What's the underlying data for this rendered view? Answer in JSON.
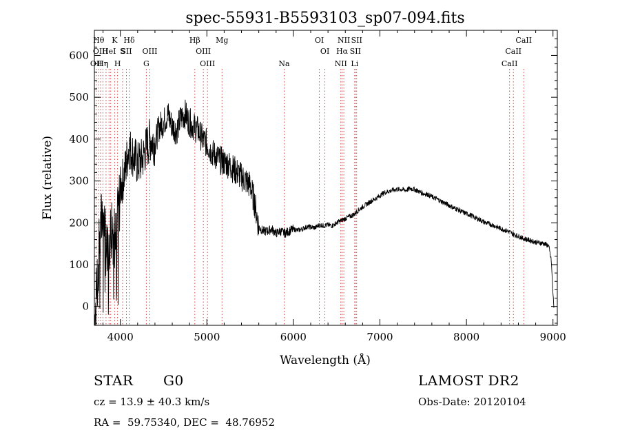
{
  "chart_data": {
    "type": "line",
    "title": "spec-55931-B5593103_sp07-094.fits",
    "xlabel": "Wavelength (Å)",
    "ylabel": "Flux (relative)",
    "xlim": [
      3700,
      9050
    ],
    "ylim": [
      -45,
      660
    ],
    "x_ticks": [
      4000,
      5000,
      6000,
      7000,
      8000,
      9000
    ],
    "x_tick_labels": [
      "4000",
      "5000",
      "6000",
      "7000",
      "8000",
      "9000"
    ],
    "y_ticks": [
      0,
      100,
      200,
      300,
      400,
      500,
      600
    ],
    "y_tick_labels": [
      "0",
      "100",
      "200",
      "300",
      "400",
      "500",
      "600"
    ],
    "grid": false,
    "series": [
      {
        "color": "#000000",
        "x": [
          3700,
          3760,
          3800,
          3850,
          3900,
          3950,
          4000,
          4050,
          4100,
          4150,
          4200,
          4250,
          4300,
          4350,
          4400,
          4450,
          4500,
          4550,
          4600,
          4650,
          4700,
          4750,
          4800,
          4850,
          4900,
          4950,
          5000,
          5050,
          5100,
          5150,
          5200,
          5250,
          5300,
          5350,
          5400,
          5450,
          5500,
          5550,
          5600,
          5650,
          5700,
          5750,
          5800,
          5850,
          5900,
          5950,
          6000,
          6050,
          6100,
          6150,
          6200,
          6250,
          6300,
          6350,
          6400,
          6450,
          6500,
          6550,
          6600,
          6650,
          6700,
          6750,
          6800,
          6850,
          6900,
          6950,
          7000,
          7050,
          7100,
          7150,
          7200,
          7250,
          7300,
          7350,
          7400,
          7450,
          7500,
          7550,
          7600,
          7650,
          7700,
          7750,
          7800,
          7850,
          7900,
          7950,
          8000,
          8050,
          8100,
          8150,
          8200,
          8250,
          8300,
          8350,
          8400,
          8450,
          8500,
          8550,
          8600,
          8650,
          8700,
          8750,
          8800,
          8850,
          8900,
          8950,
          8980,
          9000,
          9010
        ],
        "y": [
          -40,
          150,
          250,
          100,
          200,
          150,
          280,
          320,
          380,
          360,
          340,
          350,
          380,
          400,
          390,
          430,
          440,
          460,
          430,
          420,
          450,
          460,
          440,
          430,
          420,
          400,
          390,
          370,
          360,
          350,
          345,
          340,
          330,
          320,
          310,
          300,
          290,
          250,
          190,
          180,
          180,
          185,
          175,
          180,
          175,
          180,
          185,
          182,
          185,
          190,
          190,
          188,
          195,
          193,
          195,
          193,
          200,
          205,
          210,
          215,
          220,
          230,
          238,
          245,
          252,
          258,
          265,
          272,
          275,
          278,
          280,
          280,
          278,
          282,
          280,
          275,
          270,
          268,
          262,
          258,
          252,
          247,
          242,
          236,
          232,
          226,
          222,
          218,
          212,
          208,
          202,
          198,
          195,
          190,
          186,
          182,
          178,
          172,
          168,
          163,
          160,
          157,
          154,
          152,
          150,
          145,
          110,
          30,
          0
        ]
      }
    ],
    "line_markers": [
      {
        "x": 3722,
        "label": "OII",
        "row": 3
      },
      {
        "x": 3750,
        "label": "Hθ",
        "row": 1
      },
      {
        "x": 3771,
        "label": "OIII",
        "row": 2
      },
      {
        "x": 3798,
        "label": "Hη",
        "row": 3
      },
      {
        "x": 3835,
        "label": "η",
        "row": 3
      },
      {
        "x": 3869,
        "label": "HeI",
        "row": 2
      },
      {
        "x": 3889,
        "label": "",
        "row": 0
      },
      {
        "x": 3934,
        "label": "K",
        "row": 1
      },
      {
        "x": 3968,
        "label": "H",
        "row": 3
      },
      {
        "x": 4026,
        "label": "S",
        "row": 2
      },
      {
        "x": 4070,
        "label": "SII",
        "row": 2
      },
      {
        "x": 4102,
        "label": "Hδ",
        "row": 1
      },
      {
        "x": 4300,
        "label": "G",
        "row": 3
      },
      {
        "x": 4341,
        "label": "OIII",
        "row": 2
      },
      {
        "x": 4861,
        "label": "Hβ",
        "row": 1
      },
      {
        "x": 4959,
        "label": "OIII",
        "row": 2
      },
      {
        "x": 5007,
        "label": "OIII",
        "row": 3
      },
      {
        "x": 5175,
        "label": "Mg",
        "row": 1
      },
      {
        "x": 5893,
        "label": "Na",
        "row": 3
      },
      {
        "x": 6300,
        "label": "OI",
        "row": 1
      },
      {
        "x": 6364,
        "label": "OI",
        "row": 2
      },
      {
        "x": 6548,
        "label": "NII",
        "row": 3
      },
      {
        "x": 6563,
        "label": "Hα",
        "row": 2
      },
      {
        "x": 6583,
        "label": "NII",
        "row": 1
      },
      {
        "x": 6708,
        "label": "Li",
        "row": 3
      },
      {
        "x": 6716,
        "label": "SII",
        "row": 2
      },
      {
        "x": 6731,
        "label": "SII",
        "row": 1
      },
      {
        "x": 8498,
        "label": "CaII",
        "row": 3
      },
      {
        "x": 8542,
        "label": "CaII",
        "row": 2
      },
      {
        "x": 8662,
        "label": "CaII",
        "row": 1
      }
    ]
  },
  "info": {
    "object_class": "STAR",
    "subclass": "G0",
    "redshift_line": "cz = 13.9 ± 40.3 km/s",
    "coords_line": "RA =  59.75340, DEC =  48.76952",
    "survey": "LAMOST DR2",
    "obs_date_line": "Obs-Date: 20120104"
  }
}
